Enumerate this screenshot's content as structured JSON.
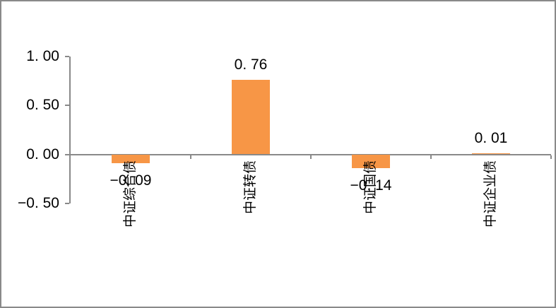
{
  "chart_data": {
    "type": "bar",
    "title": "",
    "xlabel": "",
    "ylabel": "",
    "categories": [
      "中证综合债",
      "中证转债",
      "中证国债",
      "中证企业债"
    ],
    "values": [
      -0.09,
      0.76,
      -0.14,
      0.01
    ],
    "value_labels": [
      "−0. 09",
      "0. 76",
      "−0. 14",
      "0. 01"
    ],
    "y_ticks": [
      {
        "value": 1.0,
        "label": "1. 00"
      },
      {
        "value": 0.5,
        "label": "0. 50"
      },
      {
        "value": 0.0,
        "label": "0. 00"
      },
      {
        "value": -0.5,
        "label": "−0. 50"
      }
    ],
    "ylim": [
      -0.5,
      1.0
    ],
    "grid": false,
    "legend_position": "none",
    "bar_color": "#F79646",
    "axis_color": "#898989",
    "text_color": "#000000",
    "background_color": "#FFFFFF",
    "frame_border_color": "#898989"
  }
}
